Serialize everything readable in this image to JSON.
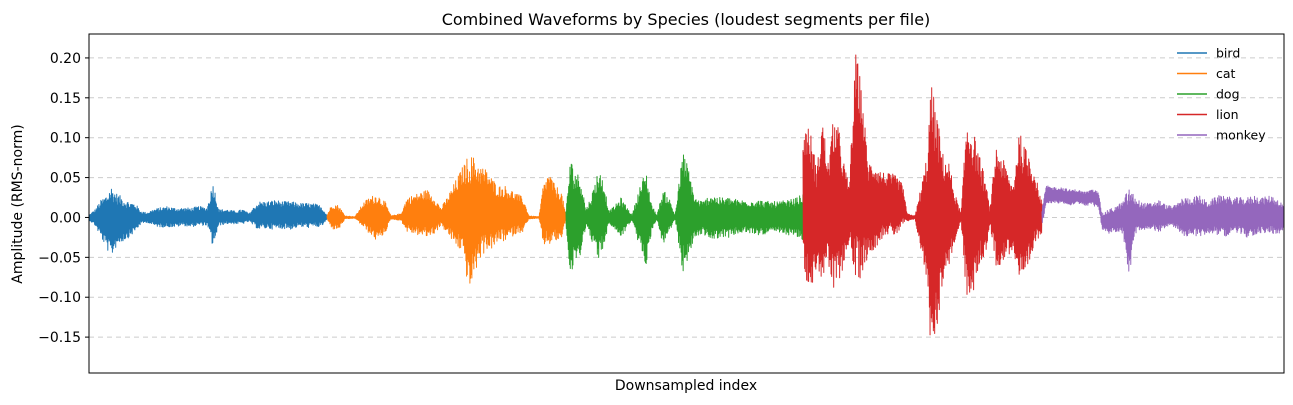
{
  "chart_data": {
    "type": "line",
    "title": "Combined Waveforms by Species (loudest segments per file)",
    "xlabel": "Downsampled index",
    "ylabel": "Amplitude (RMS-norm)",
    "ylim": [
      -0.195,
      0.23
    ],
    "yticks": [
      -0.15,
      -0.1,
      -0.05,
      0.0,
      0.05,
      0.1,
      0.15,
      0.2
    ],
    "ytick_labels": [
      "−0.15",
      "−0.10",
      "−0.05",
      "0.00",
      "0.05",
      "0.10",
      "0.15",
      "0.20"
    ],
    "xticks_visible": false,
    "grid": "y-dashed",
    "legend_position": "top-right",
    "series": [
      {
        "name": "bird",
        "color": "#1f77b4",
        "x_range": [
          0,
          238
        ],
        "envelope": [
          [
            0,
            0.003,
            -0.003
          ],
          [
            6,
            0.01,
            -0.01
          ],
          [
            12,
            0.022,
            -0.025
          ],
          [
            18,
            0.03,
            -0.04
          ],
          [
            22,
            0.04,
            -0.05
          ],
          [
            28,
            0.03,
            -0.035
          ],
          [
            34,
            0.025,
            -0.03
          ],
          [
            40,
            0.02,
            -0.025
          ],
          [
            46,
            0.018,
            -0.018
          ],
          [
            52,
            0.008,
            -0.008
          ],
          [
            58,
            0.006,
            -0.006
          ],
          [
            64,
            0.01,
            -0.01
          ],
          [
            70,
            0.012,
            -0.012
          ],
          [
            78,
            0.014,
            -0.012
          ],
          [
            86,
            0.012,
            -0.012
          ],
          [
            94,
            0.012,
            -0.01
          ],
          [
            102,
            0.012,
            -0.012
          ],
          [
            110,
            0.014,
            -0.01
          ],
          [
            118,
            0.012,
            -0.01
          ],
          [
            124,
            0.045,
            -0.038
          ],
          [
            130,
            0.01,
            -0.01
          ],
          [
            138,
            0.01,
            -0.008
          ],
          [
            146,
            0.008,
            -0.008
          ],
          [
            154,
            0.01,
            -0.008
          ],
          [
            160,
            0.005,
            -0.005
          ],
          [
            166,
            0.015,
            -0.012
          ],
          [
            170,
            0.02,
            -0.015
          ],
          [
            178,
            0.02,
            -0.014
          ],
          [
            186,
            0.022,
            -0.015
          ],
          [
            194,
            0.02,
            -0.014
          ],
          [
            202,
            0.02,
            -0.015
          ],
          [
            210,
            0.018,
            -0.012
          ],
          [
            218,
            0.018,
            -0.013
          ],
          [
            226,
            0.017,
            -0.012
          ],
          [
            232,
            0.015,
            -0.012
          ],
          [
            238,
            0.003,
            -0.003
          ]
        ]
      },
      {
        "name": "cat",
        "color": "#ff7f0e",
        "x_range": [
          238,
          477
        ],
        "envelope": [
          [
            238,
            0.003,
            -0.002
          ],
          [
            241,
            0.012,
            -0.01
          ],
          [
            244,
            0.018,
            -0.015
          ],
          [
            250,
            0.015,
            -0.015
          ],
          [
            256,
            0.002,
            -0.002
          ],
          [
            266,
            0.001,
            -0.001
          ],
          [
            274,
            0.018,
            -0.012
          ],
          [
            280,
            0.025,
            -0.02
          ],
          [
            288,
            0.03,
            -0.03
          ],
          [
            296,
            0.02,
            -0.02
          ],
          [
            302,
            0.002,
            -0.002
          ],
          [
            312,
            0.005,
            -0.004
          ],
          [
            318,
            0.025,
            -0.018
          ],
          [
            328,
            0.03,
            -0.022
          ],
          [
            338,
            0.035,
            -0.025
          ],
          [
            346,
            0.025,
            -0.02
          ],
          [
            352,
            0.012,
            -0.01
          ],
          [
            358,
            0.025,
            -0.02
          ],
          [
            366,
            0.045,
            -0.035
          ],
          [
            374,
            0.065,
            -0.045
          ],
          [
            380,
            0.08,
            -0.095
          ],
          [
            386,
            0.075,
            -0.07
          ],
          [
            392,
            0.065,
            -0.05
          ],
          [
            398,
            0.06,
            -0.04
          ],
          [
            404,
            0.048,
            -0.04
          ],
          [
            410,
            0.04,
            -0.03
          ],
          [
            416,
            0.04,
            -0.03
          ],
          [
            422,
            0.035,
            -0.025
          ],
          [
            428,
            0.03,
            -0.02
          ],
          [
            434,
            0.025,
            -0.018
          ],
          [
            440,
            0.002,
            -0.002
          ],
          [
            450,
            0.001,
            -0.001
          ],
          [
            454,
            0.04,
            -0.035
          ],
          [
            460,
            0.058,
            -0.035
          ],
          [
            466,
            0.04,
            -0.03
          ],
          [
            472,
            0.035,
            -0.03
          ],
          [
            477,
            0.003,
            -0.003
          ]
        ]
      },
      {
        "name": "dog",
        "color": "#2ca02c",
        "x_range": [
          477,
          714
        ],
        "envelope": [
          [
            477,
            0.008,
            -0.008
          ],
          [
            481,
            0.075,
            -0.08
          ],
          [
            486,
            0.06,
            -0.06
          ],
          [
            492,
            0.05,
            -0.045
          ],
          [
            497,
            0.01,
            -0.01
          ],
          [
            503,
            0.03,
            -0.03
          ],
          [
            509,
            0.06,
            -0.055
          ],
          [
            514,
            0.05,
            -0.04
          ],
          [
            520,
            0.008,
            -0.008
          ],
          [
            526,
            0.015,
            -0.015
          ],
          [
            532,
            0.025,
            -0.025
          ],
          [
            537,
            0.015,
            -0.015
          ],
          [
            543,
            0.003,
            -0.003
          ],
          [
            551,
            0.04,
            -0.04
          ],
          [
            557,
            0.06,
            -0.06
          ],
          [
            563,
            0.015,
            -0.015
          ],
          [
            568,
            0.003,
            -0.003
          ],
          [
            574,
            0.035,
            -0.035
          ],
          [
            580,
            0.025,
            -0.02
          ],
          [
            586,
            0.003,
            -0.003
          ],
          [
            594,
            0.085,
            -0.07
          ],
          [
            600,
            0.06,
            -0.05
          ],
          [
            606,
            0.025,
            -0.025
          ],
          [
            614,
            0.02,
            -0.02
          ],
          [
            622,
            0.03,
            -0.03
          ],
          [
            630,
            0.025,
            -0.025
          ],
          [
            640,
            0.025,
            -0.025
          ],
          [
            650,
            0.022,
            -0.02
          ],
          [
            660,
            0.022,
            -0.02
          ],
          [
            670,
            0.022,
            -0.022
          ],
          [
            680,
            0.02,
            -0.02
          ],
          [
            690,
            0.02,
            -0.02
          ],
          [
            700,
            0.022,
            -0.022
          ],
          [
            708,
            0.025,
            -0.025
          ],
          [
            714,
            0.03,
            -0.03
          ]
        ]
      },
      {
        "name": "lion",
        "color": "#d62728",
        "x_range": [
          714,
          953
        ],
        "envelope": [
          [
            714,
            0.11,
            -0.065
          ],
          [
            718,
            0.12,
            -0.08
          ],
          [
            723,
            0.1,
            -0.09
          ],
          [
            728,
            0.06,
            -0.06
          ],
          [
            733,
            0.13,
            -0.08
          ],
          [
            739,
            0.07,
            -0.06
          ],
          [
            745,
            0.13,
            -0.1
          ],
          [
            750,
            0.11,
            -0.08
          ],
          [
            755,
            0.07,
            -0.06
          ],
          [
            760,
            0.04,
            -0.03
          ],
          [
            767,
            0.21,
            -0.09
          ],
          [
            773,
            0.16,
            -0.07
          ],
          [
            779,
            0.07,
            -0.05
          ],
          [
            785,
            0.07,
            -0.04
          ],
          [
            791,
            0.06,
            -0.03
          ],
          [
            797,
            0.055,
            -0.02
          ],
          [
            803,
            0.055,
            -0.025
          ],
          [
            809,
            0.05,
            -0.02
          ],
          [
            814,
            0.04,
            -0.01
          ],
          [
            818,
            0.005,
            -0.005
          ],
          [
            826,
            0.002,
            -0.002
          ],
          [
            833,
            0.045,
            -0.05
          ],
          [
            838,
            0.08,
            -0.08
          ],
          [
            842,
            0.17,
            -0.17
          ],
          [
            848,
            0.13,
            -0.14
          ],
          [
            854,
            0.08,
            -0.08
          ],
          [
            860,
            0.07,
            -0.06
          ],
          [
            866,
            0.03,
            -0.03
          ],
          [
            872,
            0.005,
            -0.005
          ],
          [
            878,
            0.13,
            -0.11
          ],
          [
            884,
            0.11,
            -0.1
          ],
          [
            890,
            0.08,
            -0.06
          ],
          [
            896,
            0.05,
            -0.05
          ],
          [
            901,
            0.01,
            -0.01
          ],
          [
            907,
            0.09,
            -0.06
          ],
          [
            912,
            0.08,
            -0.06
          ],
          [
            918,
            0.06,
            -0.05
          ],
          [
            924,
            0.04,
            -0.04
          ],
          [
            930,
            0.11,
            -0.08
          ],
          [
            935,
            0.09,
            -0.09
          ],
          [
            941,
            0.08,
            -0.06
          ],
          [
            947,
            0.05,
            -0.03
          ],
          [
            953,
            0.02,
            -0.02
          ]
        ]
      },
      {
        "name": "monkey",
        "color": "#9467bd",
        "x_range": [
          953,
          1195
        ],
        "envelope": [
          [
            953,
            0.01,
            -0.01
          ],
          [
            957,
            0.04,
            0.015
          ],
          [
            964,
            0.038,
            0.018
          ],
          [
            972,
            0.038,
            0.018
          ],
          [
            980,
            0.035,
            0.015
          ],
          [
            988,
            0.035,
            0.018
          ],
          [
            996,
            0.032,
            0.015
          ],
          [
            1004,
            0.035,
            0.015
          ],
          [
            1010,
            0.032,
            0.01
          ],
          [
            1013,
            0.005,
            -0.015
          ],
          [
            1020,
            0.01,
            -0.02
          ],
          [
            1028,
            0.015,
            -0.018
          ],
          [
            1034,
            0.02,
            -0.02
          ],
          [
            1040,
            0.04,
            -0.08
          ],
          [
            1046,
            0.025,
            -0.02
          ],
          [
            1054,
            0.018,
            -0.018
          ],
          [
            1062,
            0.018,
            -0.015
          ],
          [
            1070,
            0.022,
            -0.018
          ],
          [
            1078,
            0.015,
            -0.012
          ],
          [
            1086,
            0.015,
            -0.012
          ],
          [
            1094,
            0.025,
            -0.025
          ],
          [
            1102,
            0.025,
            -0.022
          ],
          [
            1110,
            0.028,
            -0.025
          ],
          [
            1118,
            0.02,
            -0.02
          ],
          [
            1126,
            0.025,
            -0.02
          ],
          [
            1134,
            0.03,
            -0.025
          ],
          [
            1142,
            0.025,
            -0.02
          ],
          [
            1150,
            0.025,
            -0.02
          ],
          [
            1158,
            0.025,
            -0.025
          ],
          [
            1166,
            0.028,
            -0.022
          ],
          [
            1174,
            0.025,
            -0.02
          ],
          [
            1182,
            0.028,
            -0.02
          ],
          [
            1190,
            0.022,
            -0.02
          ],
          [
            1195,
            0.015,
            -0.015
          ]
        ]
      }
    ]
  }
}
